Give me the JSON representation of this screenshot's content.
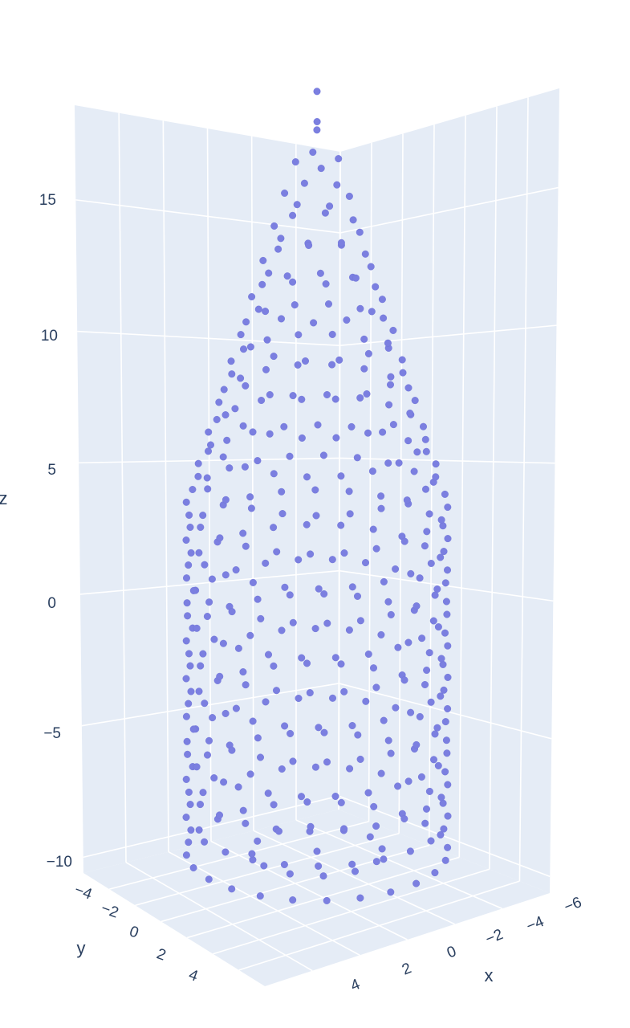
{
  "chart_data": {
    "type": "scatter3d",
    "marker_color": "#7b7fe0",
    "pane_color": "#e5ecf6",
    "grid_color": "#ffffff",
    "text_color": "#2a3f5f",
    "axes": {
      "x": {
        "title": "x",
        "ticks": [
          "−6",
          "−4",
          "−2",
          "0",
          "2",
          "4"
        ]
      },
      "y": {
        "title": "y",
        "ticks": [
          "−4",
          "−2",
          "0",
          "2",
          "4"
        ]
      },
      "z": {
        "title": "z",
        "ticks": [
          "15",
          "10",
          "5",
          "0",
          "−5",
          "−10"
        ]
      }
    },
    "description_of_data": {
      "z_range": [
        -10,
        18
      ],
      "shape": "points sampled on a cylindrical surface (radius ~5) for z from -10 to ~3, tapering to a cone apex near z ~ 18"
    }
  }
}
